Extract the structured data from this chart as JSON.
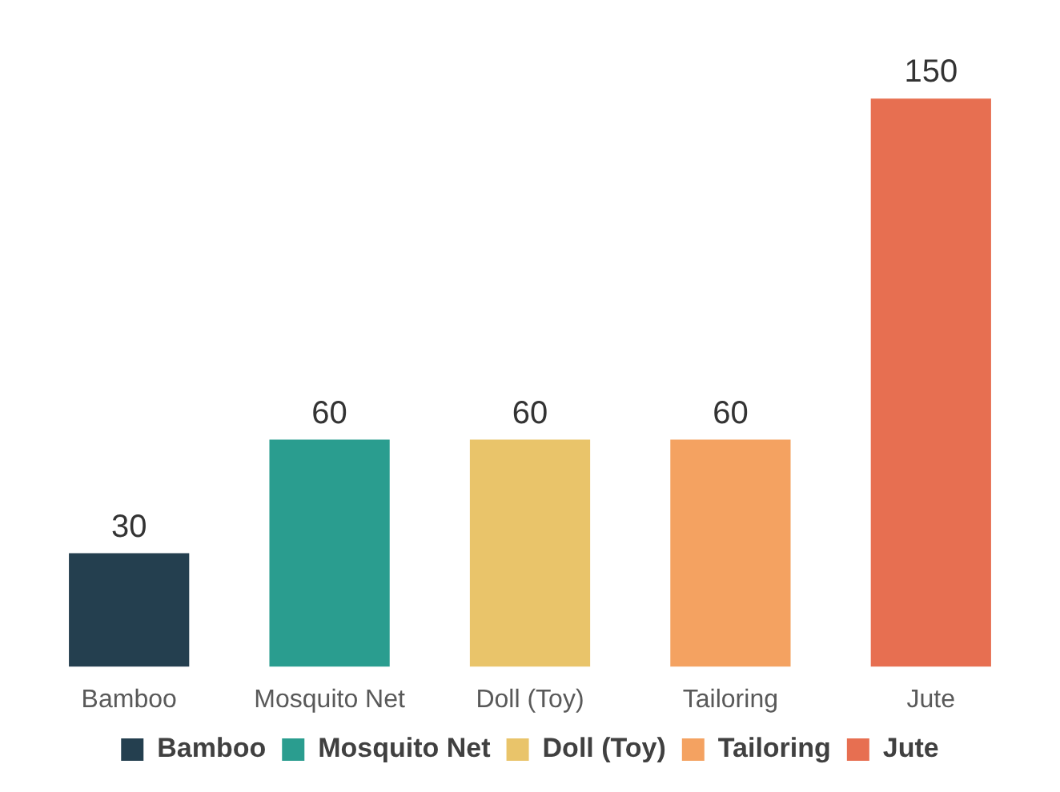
{
  "chart_data": {
    "type": "bar",
    "categories": [
      "Bamboo",
      "Mosquito Net",
      "Doll (Toy)",
      "Tailoring",
      "Jute"
    ],
    "series": [
      {
        "name": "Bamboo",
        "color": "#243f4f",
        "values": [
          30,
          null,
          null,
          null,
          null
        ]
      },
      {
        "name": "Mosquito Net",
        "color": "#2a9d8f",
        "values": [
          null,
          60,
          null,
          null,
          null
        ]
      },
      {
        "name": "Doll (Toy)",
        "color": "#e9c46a",
        "values": [
          null,
          null,
          60,
          null,
          null
        ]
      },
      {
        "name": "Tailoring",
        "color": "#f4a261",
        "values": [
          null,
          null,
          null,
          60,
          null
        ]
      },
      {
        "name": "Jute",
        "color": "#e76f51",
        "values": [
          null,
          null,
          null,
          null,
          150
        ]
      }
    ],
    "data_labels": true,
    "legend": "bottom"
  }
}
